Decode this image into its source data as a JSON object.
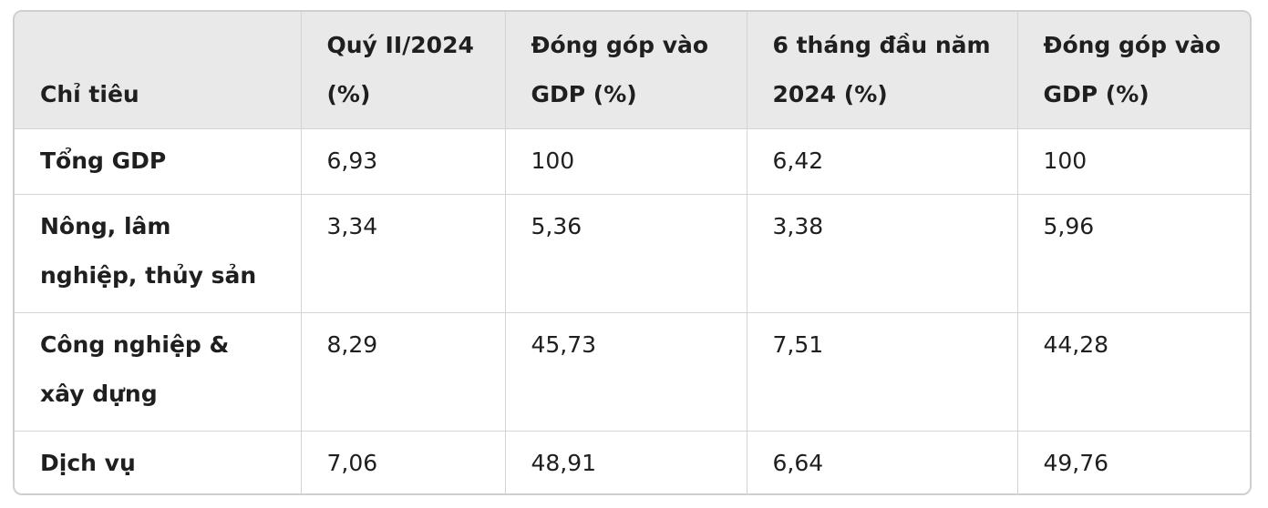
{
  "table": {
    "headers": [
      "Chỉ tiêu",
      "Quý II/2024 (%)",
      "Đóng góp vào GDP (%)",
      "6 tháng đầu năm 2024 (%)",
      "Đóng góp vào GDP (%)"
    ],
    "rows": [
      [
        "Tổng GDP",
        "6,93",
        "100",
        "6,42",
        "100"
      ],
      [
        "Nông, lâm nghiệp, thủy sản",
        "3,34",
        "5,36",
        "3,38",
        "5,96"
      ],
      [
        "Công nghiệp & xây dựng",
        "8,29",
        "45,73",
        "7,51",
        "44,28"
      ],
      [
        "Dịch vụ",
        "7,06",
        "48,91",
        "6,64",
        "49,76"
      ]
    ]
  }
}
